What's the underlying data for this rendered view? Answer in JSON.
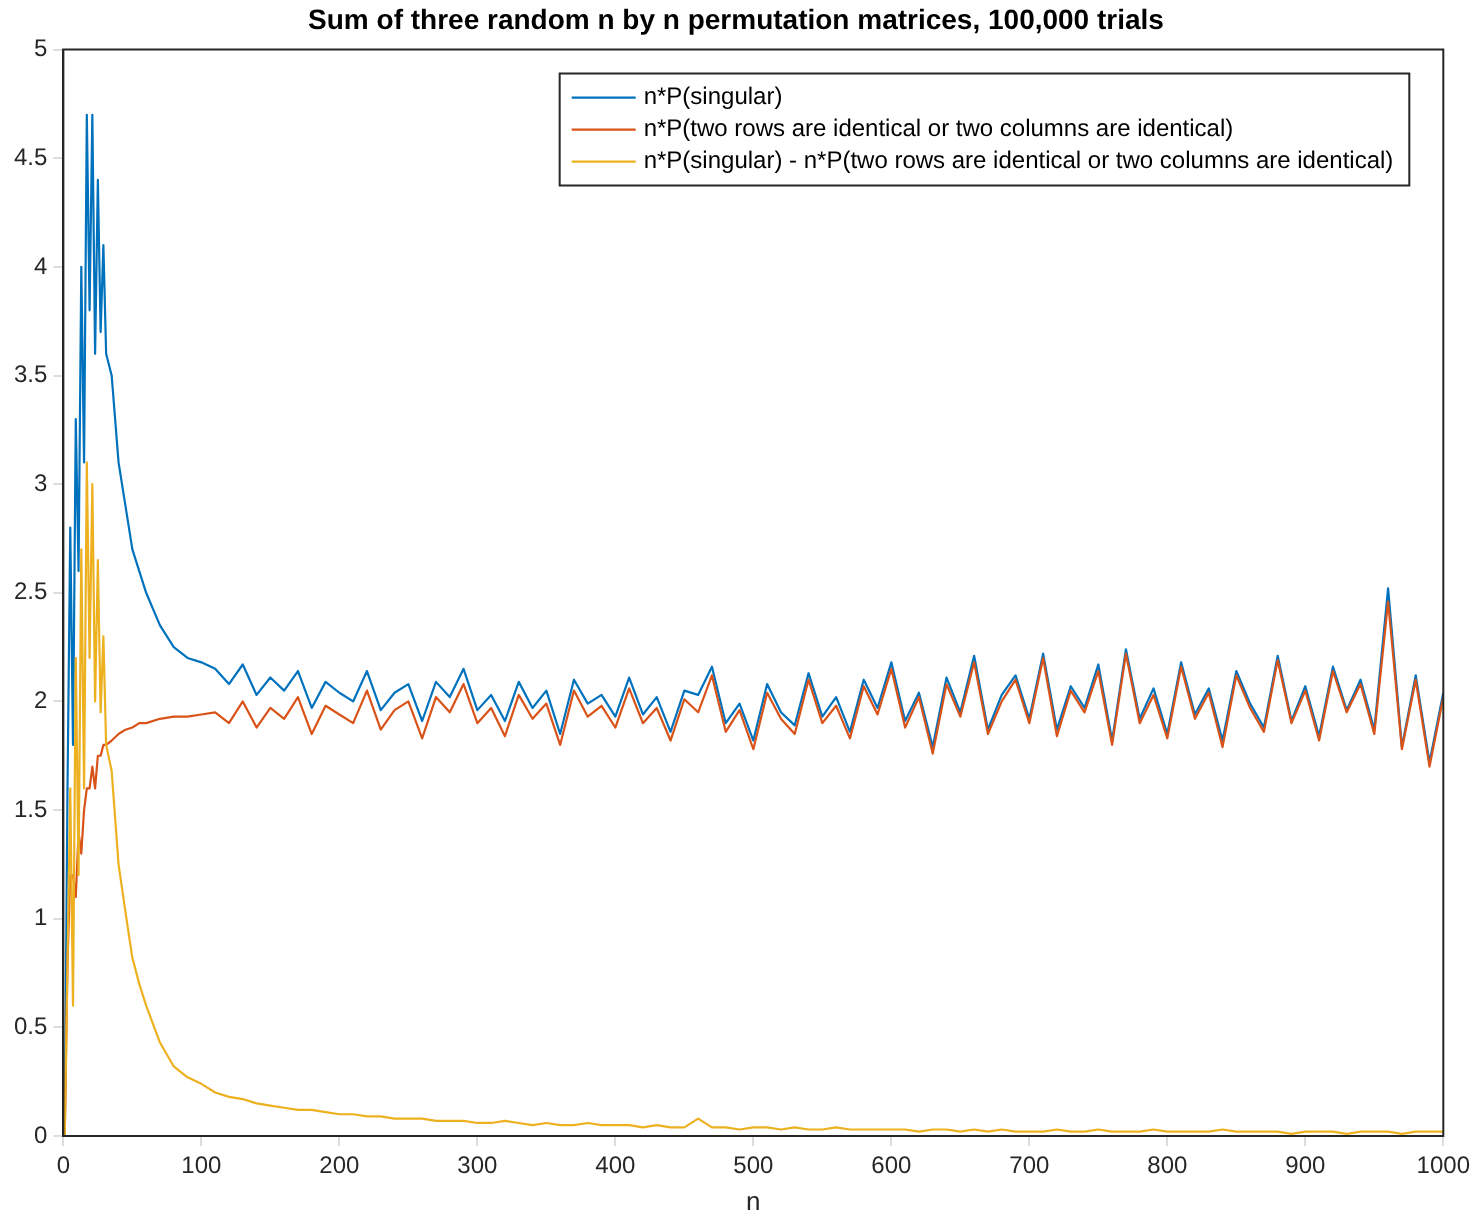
{
  "chart_data": {
    "type": "line",
    "title": "Sum of three random n by n permutation matrices, 100,000 trials",
    "xlabel": "n",
    "x": [
      1,
      3,
      5,
      7,
      9,
      11,
      13,
      15,
      17,
      19,
      21,
      23,
      25,
      27,
      29,
      31,
      35,
      40,
      45,
      50,
      55,
      60,
      70,
      80,
      90,
      100,
      110,
      120,
      130,
      140,
      150,
      160,
      170,
      180,
      190,
      200,
      210,
      220,
      230,
      240,
      250,
      260,
      270,
      280,
      290,
      300,
      310,
      320,
      330,
      340,
      350,
      360,
      370,
      380,
      390,
      400,
      410,
      420,
      430,
      440,
      450,
      460,
      470,
      480,
      490,
      500,
      510,
      520,
      530,
      540,
      550,
      560,
      570,
      580,
      590,
      600,
      610,
      620,
      630,
      640,
      650,
      660,
      670,
      680,
      690,
      700,
      710,
      720,
      730,
      740,
      750,
      760,
      770,
      780,
      790,
      800,
      810,
      820,
      830,
      840,
      850,
      860,
      870,
      880,
      890,
      900,
      910,
      920,
      930,
      940,
      950,
      960,
      970,
      980,
      990,
      1000
    ],
    "series": [
      {
        "name": "n*P(singular)",
        "color": "#0072bd",
        "values": [
          0,
          1.6,
          2.8,
          1.8,
          3.3,
          2.6,
          4.0,
          3.1,
          4.7,
          3.8,
          4.7,
          3.6,
          4.4,
          3.7,
          4.1,
          3.6,
          3.5,
          3.1,
          2.9,
          2.7,
          2.6,
          2.5,
          2.35,
          2.25,
          2.2,
          2.18,
          2.15,
          2.08,
          2.17,
          2.03,
          2.11,
          2.05,
          2.14,
          1.97,
          2.09,
          2.04,
          2.0,
          2.14,
          1.96,
          2.04,
          2.08,
          1.91,
          2.09,
          2.02,
          2.15,
          1.96,
          2.03,
          1.91,
          2.09,
          1.97,
          2.05,
          1.85,
          2.1,
          1.99,
          2.03,
          1.93,
          2.11,
          1.94,
          2.02,
          1.86,
          2.05,
          2.03,
          2.16,
          1.9,
          1.99,
          1.82,
          2.08,
          1.95,
          1.89,
          2.13,
          1.93,
          2.02,
          1.86,
          2.1,
          1.97,
          2.18,
          1.91,
          2.04,
          1.79,
          2.11,
          1.95,
          2.21,
          1.87,
          2.03,
          2.12,
          1.92,
          2.22,
          1.87,
          2.07,
          1.97,
          2.17,
          1.82,
          2.24,
          1.92,
          2.06,
          1.85,
          2.18,
          1.94,
          2.06,
          1.82,
          2.14,
          1.99,
          1.88,
          2.21,
          1.91,
          2.07,
          1.84,
          2.16,
          1.96,
          2.1,
          1.87,
          2.52,
          1.79,
          2.12,
          1.72,
          2.04
        ]
      },
      {
        "name": "n*P(two rows are identical or two columns are identical)",
        "color": "#d95319",
        "values": [
          0,
          0.8,
          1.2,
          1.2,
          1.1,
          1.4,
          1.3,
          1.5,
          1.6,
          1.6,
          1.7,
          1.6,
          1.75,
          1.75,
          1.8,
          1.8,
          1.82,
          1.85,
          1.87,
          1.88,
          1.9,
          1.9,
          1.92,
          1.93,
          1.93,
          1.94,
          1.95,
          1.9,
          2.0,
          1.88,
          1.97,
          1.92,
          2.02,
          1.85,
          1.98,
          1.94,
          1.9,
          2.05,
          1.87,
          1.96,
          2.0,
          1.83,
          2.02,
          1.95,
          2.08,
          1.9,
          1.97,
          1.84,
          2.03,
          1.92,
          1.99,
          1.8,
          2.05,
          1.93,
          1.98,
          1.88,
          2.06,
          1.9,
          1.97,
          1.82,
          2.01,
          1.95,
          2.12,
          1.86,
          1.96,
          1.78,
          2.04,
          1.92,
          1.85,
          2.1,
          1.9,
          1.98,
          1.83,
          2.07,
          1.94,
          2.15,
          1.88,
          2.02,
          1.76,
          2.08,
          1.93,
          2.18,
          1.85,
          2.0,
          2.1,
          1.9,
          2.2,
          1.84,
          2.05,
          1.95,
          2.14,
          1.8,
          2.22,
          1.9,
          2.03,
          1.83,
          2.16,
          1.92,
          2.04,
          1.79,
          2.12,
          1.97,
          1.86,
          2.19,
          1.9,
          2.05,
          1.82,
          2.14,
          1.95,
          2.08,
          1.85,
          2.46,
          1.78,
          2.1,
          1.7,
          2.02
        ]
      },
      {
        "name": "n*P(singular) - n*P(two rows are identical or two columns are identical)",
        "color": "#edb120",
        "values": [
          0,
          0.8,
          1.6,
          0.6,
          2.2,
          1.2,
          2.7,
          1.6,
          3.1,
          2.2,
          3.0,
          2.0,
          2.65,
          1.95,
          2.3,
          1.8,
          1.68,
          1.25,
          1.03,
          0.82,
          0.7,
          0.6,
          0.43,
          0.32,
          0.27,
          0.24,
          0.2,
          0.18,
          0.17,
          0.15,
          0.14,
          0.13,
          0.12,
          0.12,
          0.11,
          0.1,
          0.1,
          0.09,
          0.09,
          0.08,
          0.08,
          0.08,
          0.07,
          0.07,
          0.07,
          0.06,
          0.06,
          0.07,
          0.06,
          0.05,
          0.06,
          0.05,
          0.05,
          0.06,
          0.05,
          0.05,
          0.05,
          0.04,
          0.05,
          0.04,
          0.04,
          0.08,
          0.04,
          0.04,
          0.03,
          0.04,
          0.04,
          0.03,
          0.04,
          0.03,
          0.03,
          0.04,
          0.03,
          0.03,
          0.03,
          0.03,
          0.03,
          0.02,
          0.03,
          0.03,
          0.02,
          0.03,
          0.02,
          0.03,
          0.02,
          0.02,
          0.02,
          0.03,
          0.02,
          0.02,
          0.03,
          0.02,
          0.02,
          0.02,
          0.03,
          0.02,
          0.02,
          0.02,
          0.02,
          0.03,
          0.02,
          0.02,
          0.02,
          0.02,
          0.01,
          0.02,
          0.02,
          0.02,
          0.01,
          0.02,
          0.02,
          0.02,
          0.01,
          0.02,
          0.02,
          0.02
        ]
      }
    ],
    "xlim": [
      0,
      1000
    ],
    "xticks": [
      0,
      100,
      200,
      300,
      400,
      500,
      600,
      700,
      800,
      900,
      1000
    ],
    "ylim": [
      0,
      5
    ],
    "yticks": [
      0,
      0.5,
      1,
      1.5,
      2,
      2.5,
      3,
      3.5,
      4,
      4.5,
      5
    ],
    "grid": false,
    "legend": "top right",
    "marker": "none",
    "line_style": "solid"
  }
}
